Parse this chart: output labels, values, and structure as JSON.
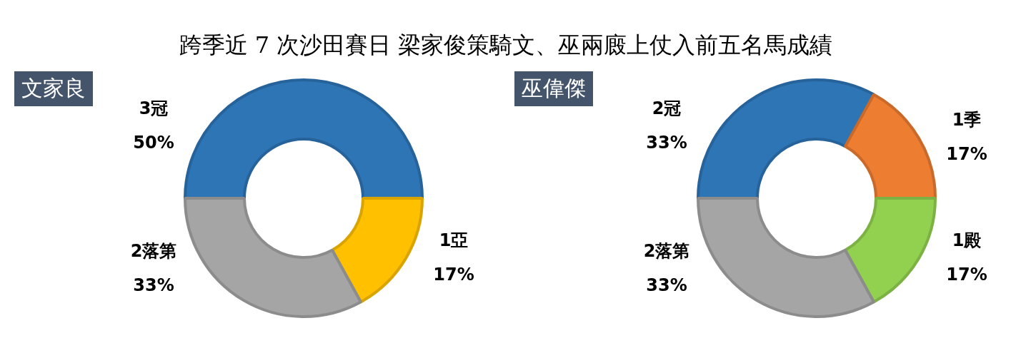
{
  "chart_data": [
    {
      "type": "donut",
      "title": "跨季近 7 次沙田賽日  梁家俊策騎文、巫兩廄上仗入前五名馬成績",
      "subtitle": "文家良",
      "categories": [
        "3冠",
        "1亞",
        "2落第"
      ],
      "values": [
        50,
        17,
        33
      ],
      "colors": [
        "#2e75b6",
        "#ffc000",
        "#a5a5a5"
      ],
      "value_labels": [
        "50%",
        "17%",
        "33%"
      ],
      "legend": false
    },
    {
      "type": "donut",
      "subtitle": "巫偉傑",
      "categories": [
        "2冠",
        "1季",
        "1殿",
        "2落第"
      ],
      "values": [
        33,
        17,
        17,
        33
      ],
      "colors": [
        "#2e75b6",
        "#ed7d31",
        "#92d050",
        "#a5a5a5"
      ],
      "value_labels": [
        "33%",
        "17%",
        "17%",
        "33%"
      ],
      "legend": false
    }
  ]
}
